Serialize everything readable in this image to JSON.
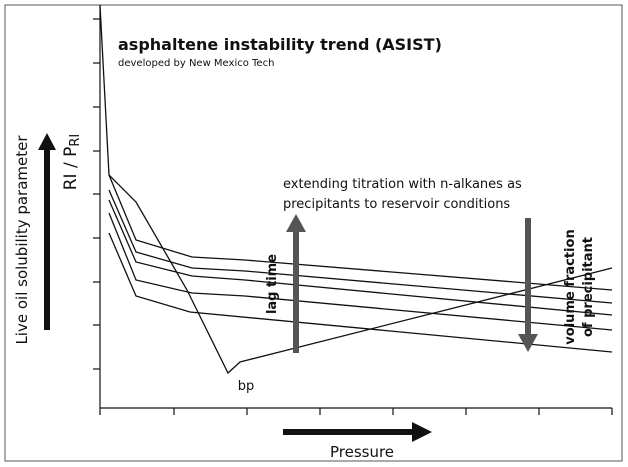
{
  "title": "asphaltene instability trend (ASIST)",
  "subtitle": "developed by New Mexico Tech",
  "y_axis_label": "Live oil solubility parameter",
  "ratio_label": {
    "main": "RI / P",
    "subscript": "RI"
  },
  "x_axis_label": "Pressure",
  "annotation": {
    "line1": "extending titration with n-alkanes as",
    "line2": "precipitants to reservoir conditions"
  },
  "lag_time_label": "lag time",
  "volume_label": {
    "line1": "volume fraction",
    "line2": "of precipitant"
  },
  "bp_label": "bp"
}
